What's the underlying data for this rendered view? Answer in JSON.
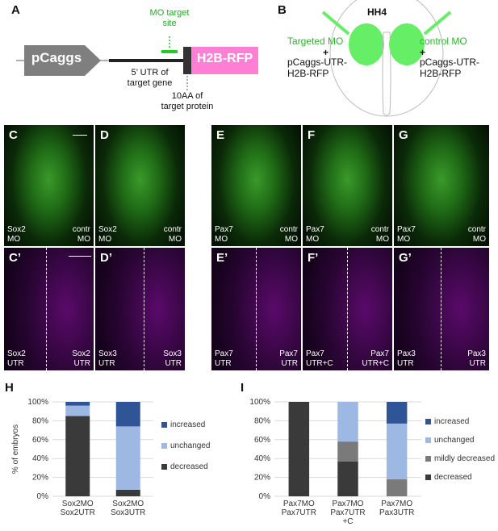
{
  "panel_a": {
    "label": "A",
    "promoter": "pCaggs",
    "mo_target": "MO target\nsite",
    "utr_label": "5’ UTR of\ntarget gene",
    "reporter": "H2B-RFP",
    "aa_label": "10AA of\ntarget protein",
    "colors": {
      "promoter": "#7f7f7f",
      "reporter": "#ff7fd4",
      "mo": "#22cc22"
    }
  },
  "panel_b": {
    "label": "B",
    "stage": "HH4",
    "targeted": "Targeted MO",
    "control": "control MO",
    "plus": "+",
    "construct_left": "pCaggs-UTR-\nH2B-RFP",
    "construct_right": "pCaggs-UTR-\nH2B-RFP"
  },
  "top_panels": [
    {
      "label": "C",
      "left": "Sox2\nMO",
      "right": "contr\nMO"
    },
    {
      "label": "D",
      "left": "Sox2\nMO",
      "right": "contr\nMO"
    },
    {
      "label": "E",
      "left": "Pax7\nMO",
      "right": "contr\nMO"
    },
    {
      "label": "F",
      "left": "Pax7\nMO",
      "right": "contr\nMO"
    },
    {
      "label": "G",
      "left": "Pax7\nMO",
      "right": "contr\nMO"
    }
  ],
  "bottom_panels": [
    {
      "label": "C’",
      "left": "Sox2\nUTR",
      "right": "Sox2\nUTR"
    },
    {
      "label": "D’",
      "left": "Sox3\nUTR",
      "right": "Sox3\nUTR"
    },
    {
      "label": "E’",
      "left": "Pax7\nUTR",
      "right": "Pax7\nUTR"
    },
    {
      "label": "F’",
      "left": "Pax7\nUTR+C",
      "right": "Pax7\nUTR+C"
    },
    {
      "label": "G’",
      "left": "Pax3\nUTR",
      "right": "Pax3\nUTR"
    }
  ],
  "chart_data": [
    {
      "panel": "H",
      "type": "bar",
      "stacked": true,
      "ylabel": "% of embryos",
      "ylim": [
        0,
        100
      ],
      "yticks": [
        "0%",
        "20%",
        "40%",
        "60%",
        "80%",
        "100%"
      ],
      "categories": [
        "Sox2MO\nSox2UTR",
        "Sox2MO\nSox3UTR"
      ],
      "series": [
        {
          "name": "decreased",
          "color": "#3a3a3a",
          "values": [
            85,
            7
          ]
        },
        {
          "name": "unchanged",
          "color": "#9db8e3",
          "values": [
            11,
            67
          ]
        },
        {
          "name": "increased",
          "color": "#2f5597",
          "values": [
            4,
            26
          ]
        }
      ],
      "legend_order": [
        "increased",
        "unchanged",
        "decreased"
      ],
      "legend": "right",
      "grid": true
    },
    {
      "panel": "I",
      "type": "bar",
      "stacked": true,
      "ylabel": "% of embryos",
      "ylim": [
        0,
        100
      ],
      "yticks": [
        "0%",
        "20%",
        "40%",
        "60%",
        "80%",
        "100%"
      ],
      "categories": [
        "Pax7MO\nPax7UTR",
        "Pax7MO\nPax7UTR\n+C",
        "Pax7MO\nPax3UTR"
      ],
      "series": [
        {
          "name": "decreased",
          "color": "#3a3a3a",
          "values": [
            100,
            37,
            0
          ]
        },
        {
          "name": "mildly decreased",
          "color": "#7a7a7a",
          "values": [
            0,
            21,
            18
          ]
        },
        {
          "name": "unchanged",
          "color": "#9db8e3",
          "values": [
            0,
            42,
            59
          ]
        },
        {
          "name": "increased",
          "color": "#2f5597",
          "values": [
            0,
            0,
            23
          ]
        }
      ],
      "legend_order": [
        "increased",
        "unchanged",
        "mildly decreased",
        "decreased"
      ],
      "legend": "right",
      "grid": true
    }
  ]
}
